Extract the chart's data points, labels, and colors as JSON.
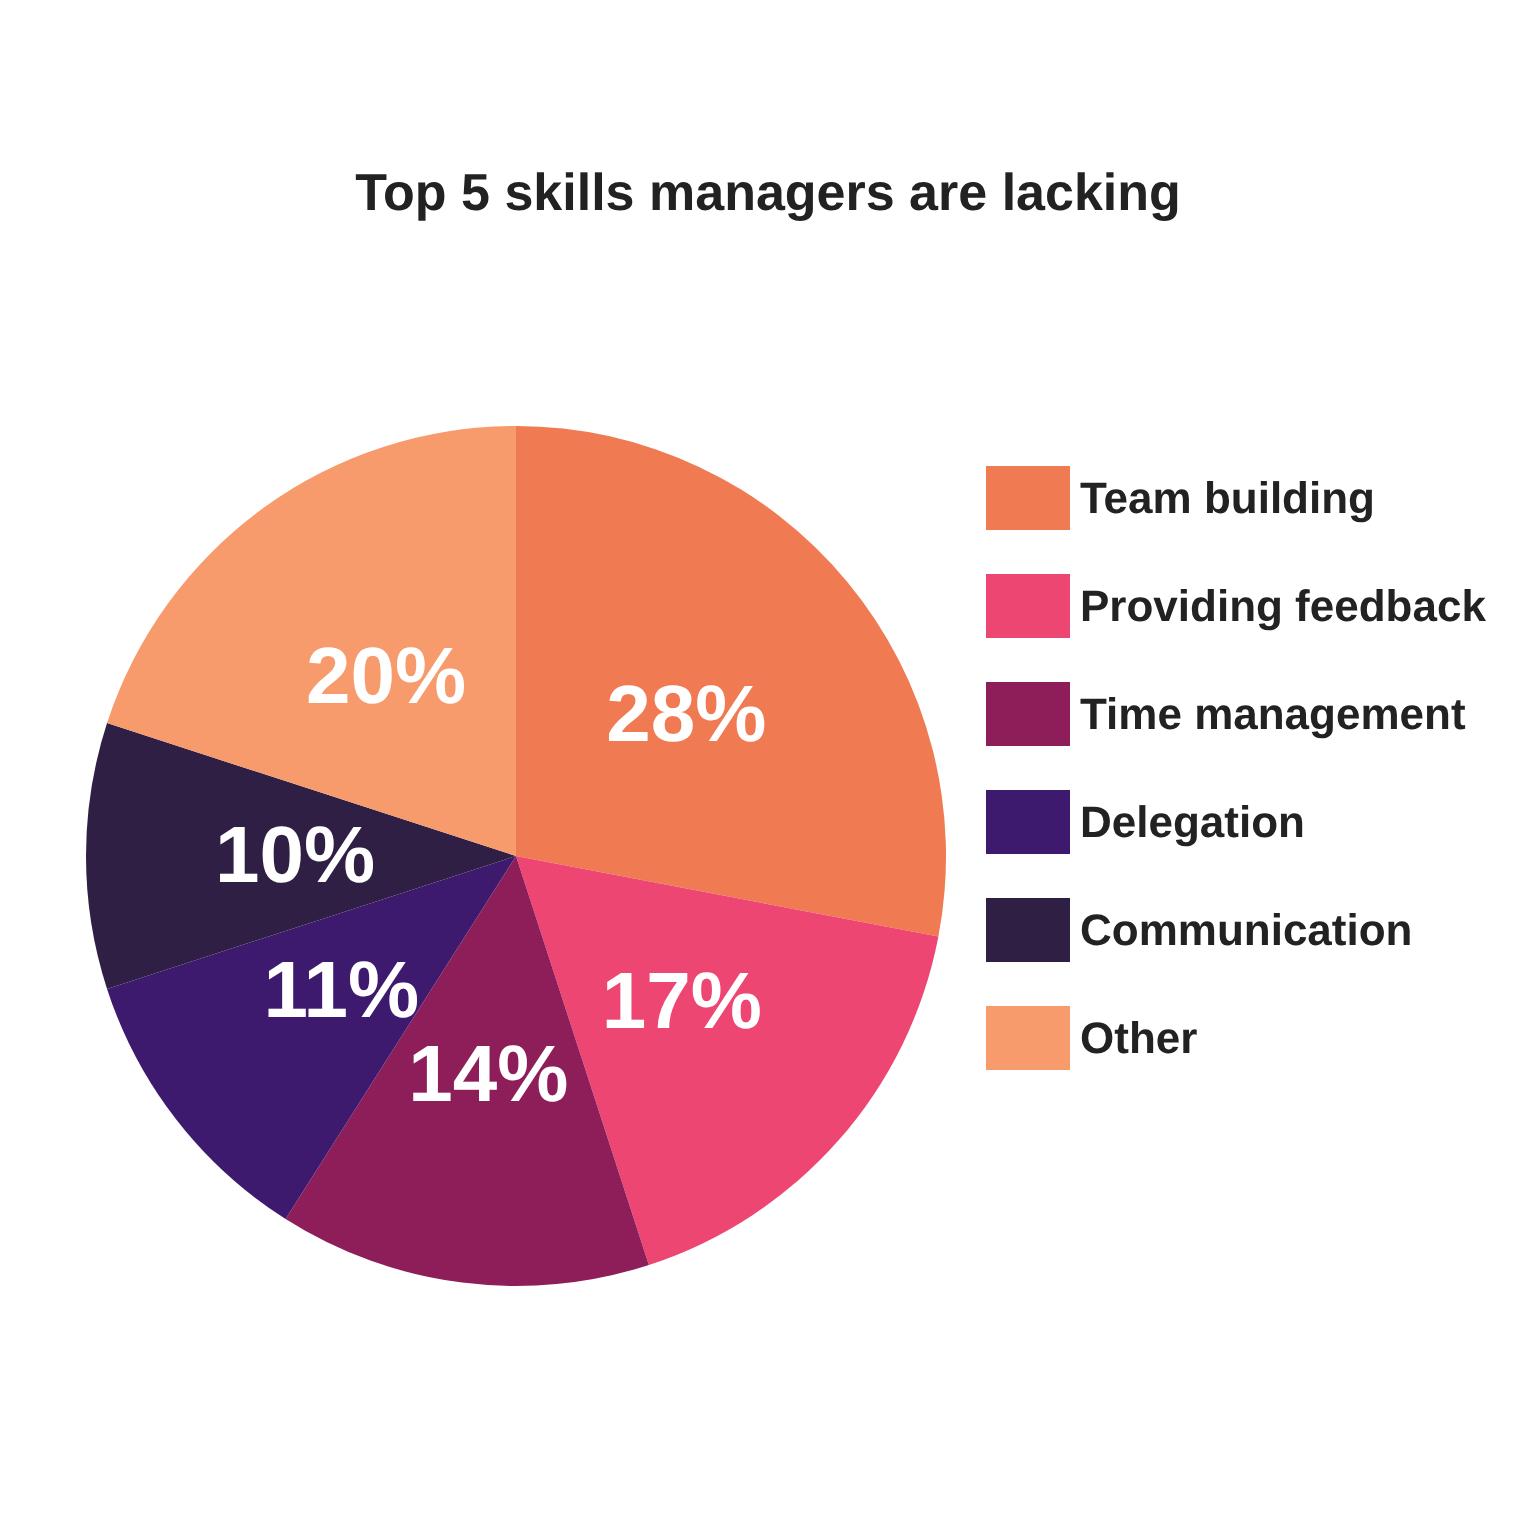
{
  "chart_data": {
    "type": "pie",
    "title": "Top 5 skills managers are lacking",
    "categories": [
      "Team building",
      "Providing feedback",
      "Time management",
      "Delegation",
      "Communication",
      "Other"
    ],
    "values": [
      28,
      17,
      14,
      11,
      10,
      20
    ],
    "value_labels": [
      "28%",
      "17%",
      "14%",
      "11%",
      "10%",
      "20%"
    ],
    "colors": [
      "#f07a52",
      "#ee4672",
      "#8e1e5a",
      "#3e1a6e",
      "#2f1f45",
      "#f79a6c"
    ],
    "legend": "right"
  }
}
